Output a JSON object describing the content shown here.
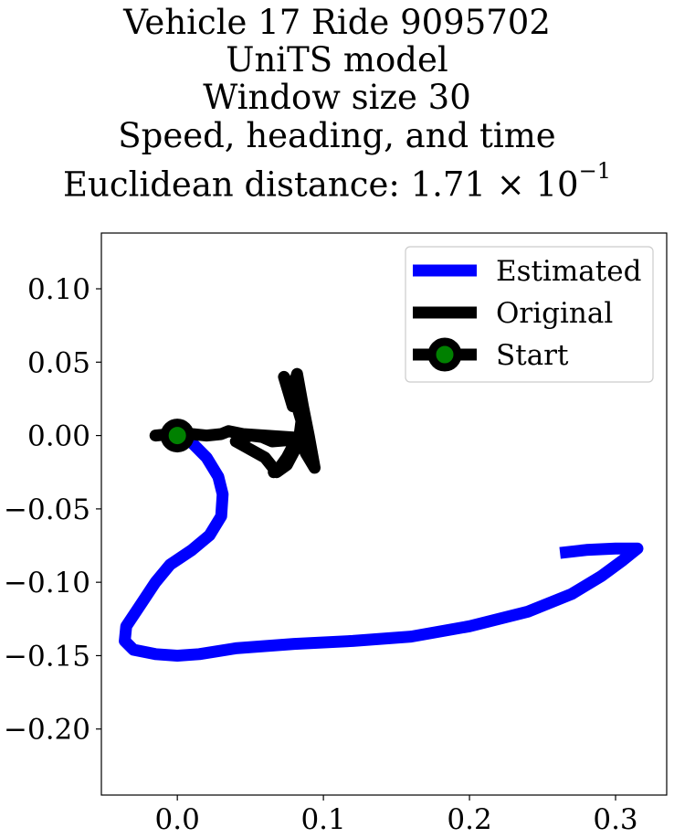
{
  "title": {
    "line1": "Vehicle 17 Ride 9095702",
    "line2": "UniTS model",
    "line3": "Window size 30",
    "line4": "Speed, heading, and time",
    "line5_prefix": "Euclidean distance: 1.71 × 10",
    "line5_exp": "−1"
  },
  "chart_data": {
    "type": "line",
    "title": "Vehicle 17 Ride 9095702 / UniTS model / Window size 30 / Speed, heading, and time / Euclidean distance: 1.71 × 10^-1",
    "xlabel": "",
    "ylabel": "",
    "xlim": [
      -0.052,
      0.335
    ],
    "ylim": [
      -0.245,
      0.138
    ],
    "xticks": [
      "0.0",
      "0.1",
      "0.2",
      "0.3"
    ],
    "xtick_values": [
      0.0,
      0.1,
      0.2,
      0.3
    ],
    "yticks": [
      "0.10",
      "0.05",
      "0.00",
      "−0.05",
      "−0.10",
      "−0.15",
      "−0.20"
    ],
    "ytick_values": [
      0.1,
      0.05,
      0.0,
      -0.05,
      -0.1,
      -0.15,
      -0.2
    ],
    "grid": false,
    "legend_position": "top-right",
    "series": [
      {
        "name": "Estimated",
        "color": "#0000ff",
        "x": [
          0.0,
          0.01,
          0.02,
          0.028,
          0.031,
          0.03,
          0.022,
          0.01,
          -0.005,
          -0.015,
          -0.025,
          -0.035,
          -0.036,
          -0.03,
          -0.015,
          0.0,
          0.015,
          0.04,
          0.08,
          0.12,
          0.16,
          0.2,
          0.24,
          0.27,
          0.29,
          0.305,
          0.315,
          0.3,
          0.28,
          0.262
        ],
        "y": [
          0.0,
          -0.005,
          -0.015,
          -0.028,
          -0.04,
          -0.055,
          -0.068,
          -0.078,
          -0.088,
          -0.1,
          -0.115,
          -0.13,
          -0.14,
          -0.146,
          -0.149,
          -0.15,
          -0.149,
          -0.145,
          -0.142,
          -0.14,
          -0.137,
          -0.13,
          -0.12,
          -0.108,
          -0.096,
          -0.085,
          -0.077,
          -0.077,
          -0.078,
          -0.08
        ]
      },
      {
        "name": "Original",
        "color": "#000000",
        "x": [
          -0.015,
          -0.005,
          0.0,
          0.01,
          0.02,
          0.03,
          0.035,
          0.045,
          0.06,
          0.09,
          0.065,
          0.058,
          0.05,
          0.045,
          0.04,
          0.06,
          0.068,
          0.075,
          0.083,
          0.085,
          0.082,
          0.078,
          0.075,
          0.073,
          0.076,
          0.079,
          0.08,
          0.082,
          0.086,
          0.09,
          0.094,
          0.088,
          0.083,
          0.075,
          0.07,
          0.066
        ],
        "y": [
          0.0,
          0.001,
          0.0,
          0.001,
          0.0,
          0.001,
          0.003,
          0.001,
          0.0,
          -0.002,
          -0.004,
          -0.001,
          0.0,
          -0.002,
          -0.004,
          -0.015,
          -0.025,
          -0.02,
          -0.005,
          0.01,
          0.02,
          0.03,
          0.037,
          0.04,
          0.03,
          0.02,
          0.035,
          0.042,
          0.02,
          0.0,
          -0.022,
          -0.012,
          0.0,
          -0.015,
          -0.022,
          -0.025
        ]
      }
    ],
    "start": {
      "name": "Start",
      "x": 0.0,
      "y": 0.0,
      "line_color": "#000000",
      "marker_color": "#008000"
    }
  }
}
